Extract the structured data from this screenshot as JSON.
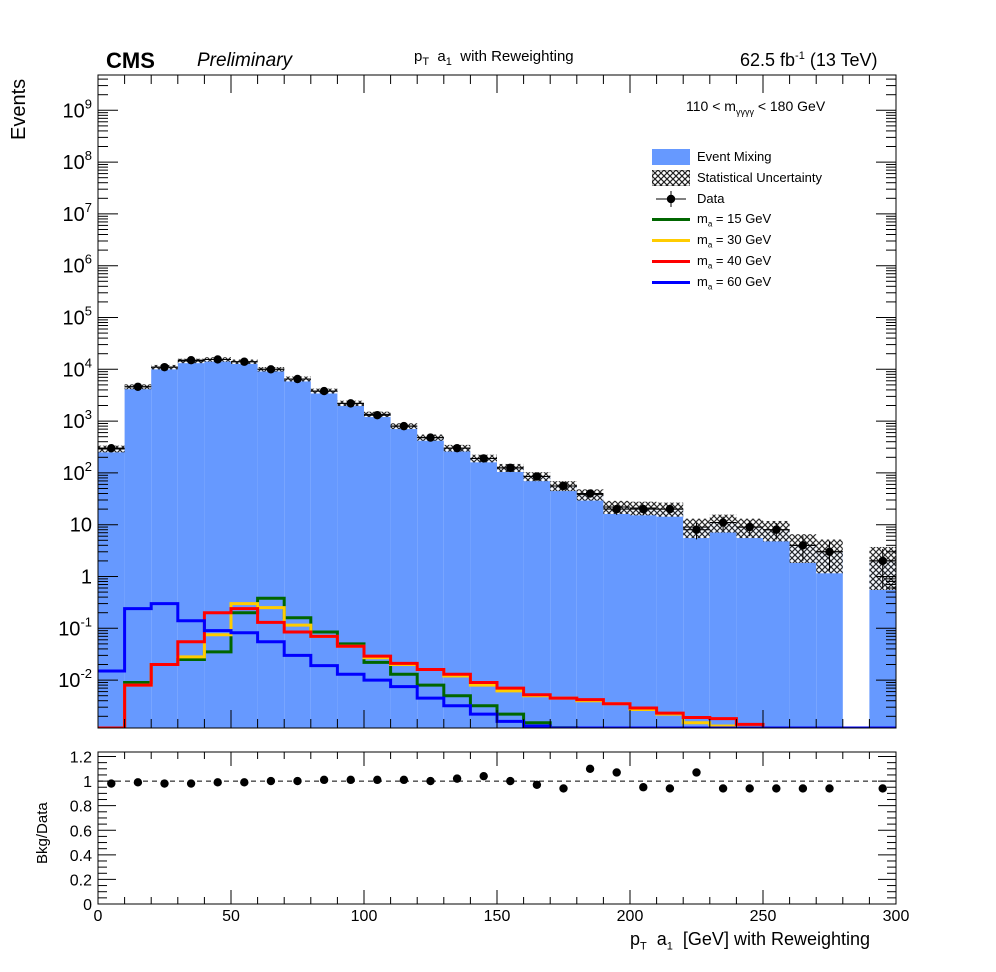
{
  "header": {
    "experiment": "CMS",
    "status": "Preliminary",
    "title_main": "p",
    "title_sub": "T",
    "title_rest": "a",
    "title_sub2": "1",
    "title_tail": "with Reweighting",
    "lumi_value": "62.5 fb",
    "lumi_exp": "-1",
    "lumi_energy": "(13 TeV)"
  },
  "selection": {
    "pre": "110 < m",
    "sub": "γγγγ",
    "post": "< 180 GeV"
  },
  "axes": {
    "top_ylabel": "Events",
    "bottom_ylabel": "Bkg/Data",
    "xlabel_p": "p",
    "xlabel_T": "T",
    "xlabel_a": "a",
    "xlabel_1": "1",
    "xlabel_rest": "[GeV] with Reweighting"
  },
  "legend": {
    "bkg": "Event Mixing",
    "unc": "Statistical Uncertainty",
    "data": "Data",
    "sig_prefix": "m",
    "sig_sub": "a",
    "sig15": "= 15 GeV",
    "sig30": "= 30 GeV",
    "sig40": "= 40 GeV",
    "sig60": "= 60 GeV"
  },
  "colors": {
    "bkg": "#6699ff",
    "sig15": "#006600",
    "sig30": "#ffcc00",
    "sig40": "#ff0000",
    "sig60": "#0000ff"
  },
  "chart_data": [
    {
      "type": "bar",
      "panel": "main",
      "log_y": true,
      "xlim": [
        0,
        300
      ],
      "ylim": [
        0.0012,
        5000000000
      ],
      "y_tick_labels": [
        "10^{-2}",
        "10^{-1}",
        "1",
        "10",
        "10^{2}",
        "10^{3}",
        "10^{4}",
        "10^{5}",
        "10^{6}",
        "10^{7}",
        "10^{8}",
        "10^{9}"
      ],
      "y_tick_values": [
        0.01,
        0.1,
        1,
        10,
        100,
        1000,
        10000,
        100000,
        1000000,
        10000000,
        100000000,
        1000000000
      ],
      "bin_edges": [
        0,
        10,
        20,
        30,
        40,
        50,
        60,
        70,
        80,
        90,
        100,
        110,
        120,
        130,
        140,
        150,
        160,
        170,
        180,
        190,
        200,
        210,
        220,
        230,
        240,
        250,
        260,
        270,
        280,
        290,
        300
      ],
      "series": [
        {
          "name": "Event Mixing",
          "kind": "filled-hist",
          "values": [
            290,
            4600,
            11000,
            14500,
            15500,
            14000,
            10000,
            6500,
            3800,
            2200,
            1350,
            800,
            480,
            300,
            190,
            125,
            85,
            56,
            38,
            22,
            21,
            20,
            9,
            11,
            9,
            8,
            4,
            3,
            0,
            2
          ]
        },
        {
          "name": "Statistical Uncertainty",
          "kind": "band",
          "rel_err": [
            0.06,
            0.02,
            0.01,
            0.01,
            0.01,
            0.01,
            0.01,
            0.02,
            0.02,
            0.03,
            0.03,
            0.04,
            0.05,
            0.06,
            0.08,
            0.09,
            0.11,
            0.13,
            0.16,
            0.2,
            0.21,
            0.22,
            0.33,
            0.3,
            0.33,
            0.35,
            0.5,
            0.58,
            0,
            0.7
          ]
        },
        {
          "name": "Data",
          "kind": "points",
          "values": [
            300,
            4600,
            11000,
            15000,
            15500,
            14000,
            10000,
            6500,
            3800,
            2200,
            1300,
            800,
            480,
            300,
            190,
            125,
            85,
            56,
            40,
            20,
            20,
            20,
            8,
            11,
            9,
            8,
            4,
            3,
            null,
            2
          ],
          "errors": [
            17,
            68,
            105,
            122,
            124,
            118,
            100,
            80,
            62,
            47,
            36,
            28,
            22,
            17,
            14,
            11,
            9,
            7.5,
            6.3,
            4.5,
            4.5,
            4.5,
            2.8,
            3.3,
            3,
            2.8,
            2,
            1.7,
            null,
            1.4
          ]
        },
        {
          "name": "m_a = 15 GeV",
          "kind": "step",
          "values": [
            0.001,
            0.009,
            0.02,
            0.025,
            0.035,
            0.2,
            0.38,
            0.16,
            0.085,
            0.05,
            0.022,
            0.013,
            0.008,
            0.005,
            0.0032,
            0.0022,
            0.0015,
            0.0012,
            0.001,
            0.001,
            0.001,
            0.001,
            0.001,
            0.001,
            0.001,
            0.001,
            0.001,
            0.001,
            0.001,
            0.001
          ]
        },
        {
          "name": "m_a = 30 GeV",
          "kind": "step",
          "values": [
            0.001,
            0.008,
            0.02,
            0.028,
            0.075,
            0.3,
            0.25,
            0.115,
            0.07,
            0.045,
            0.027,
            0.02,
            0.016,
            0.012,
            0.008,
            0.0062,
            0.005,
            0.0045,
            0.004,
            0.0035,
            0.0027,
            0.0022,
            0.0015,
            0.0013,
            0.0012,
            0.0011,
            0.001,
            0.001,
            0.001,
            0.001
          ]
        },
        {
          "name": "m_a = 40 GeV",
          "kind": "step",
          "values": [
            0.001,
            0.008,
            0.02,
            0.055,
            0.2,
            0.24,
            0.13,
            0.085,
            0.07,
            0.045,
            0.029,
            0.021,
            0.016,
            0.013,
            0.009,
            0.007,
            0.0052,
            0.0045,
            0.0042,
            0.0035,
            0.0029,
            0.0023,
            0.0019,
            0.0018,
            0.0014,
            0.0011,
            0.001,
            0.001,
            0.001,
            0.001
          ]
        },
        {
          "name": "m_a = 60 GeV",
          "kind": "step",
          "values": [
            0.015,
            0.24,
            0.3,
            0.14,
            0.09,
            0.082,
            0.055,
            0.03,
            0.019,
            0.013,
            0.01,
            0.0075,
            0.0045,
            0.0032,
            0.0022,
            0.0016,
            0.0013,
            0.001,
            0.001,
            0.001,
            0.001,
            0.001,
            0.001,
            0.001,
            0.001,
            0.001,
            0.001,
            0.001,
            0.001,
            0.001
          ]
        }
      ]
    },
    {
      "type": "scatter",
      "panel": "ratio",
      "xlim": [
        0,
        300
      ],
      "ylim": [
        0,
        1.2
      ],
      "x_tick_labels": [
        "0",
        "50",
        "100",
        "150",
        "200",
        "250",
        "300"
      ],
      "y_tick_labels": [
        "0",
        "0.2",
        "0.4",
        "0.6",
        "0.8",
        "1",
        "1.2"
      ],
      "reference_line": 1,
      "x": [
        5,
        15,
        25,
        35,
        45,
        55,
        65,
        75,
        85,
        95,
        105,
        115,
        125,
        135,
        145,
        155,
        165,
        175,
        185,
        195,
        205,
        215,
        225,
        235,
        245,
        255,
        265,
        275,
        295
      ],
      "values": [
        0.98,
        0.99,
        0.98,
        0.98,
        0.99,
        0.99,
        1.0,
        1.0,
        1.01,
        1.01,
        1.01,
        1.01,
        1.0,
        1.02,
        1.04,
        1.0,
        0.97,
        0.94,
        1.1,
        1.07,
        0.95,
        0.94,
        1.07,
        0.94,
        0.94,
        0.94,
        0.94,
        0.94,
        0.94
      ]
    }
  ]
}
